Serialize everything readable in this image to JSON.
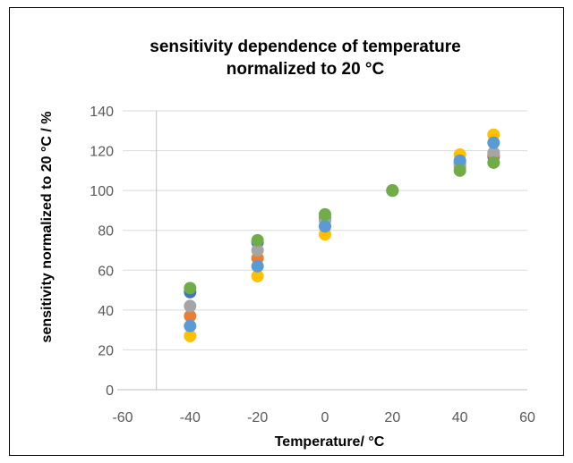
{
  "chart_data": {
    "type": "scatter",
    "title_lines": [
      "sensitivity dependence of temperature",
      "normalized to 20 °C"
    ],
    "xlabel": "Temperature/ °C",
    "ylabel": "sensitivity normalized to 20 °C / %",
    "xlim": [
      -60,
      60
    ],
    "ylim": [
      0,
      140
    ],
    "xticks": [
      "-60",
      "-40",
      "-20",
      "0",
      "20",
      "40",
      "60"
    ],
    "yticks": [
      "0",
      "20",
      "40",
      "60",
      "80",
      "100",
      "120",
      "140"
    ],
    "grid": "horizontal",
    "legend": "none",
    "series": [
      {
        "color": "#4472C4",
        "points": [
          [
            -40,
            49
          ],
          [
            -20,
            74
          ],
          [
            0,
            86
          ],
          [
            20,
            100
          ],
          [
            40,
            114
          ],
          [
            50,
            117
          ]
        ]
      },
      {
        "color": "#ED7D31",
        "points": [
          [
            -40,
            37
          ],
          [
            -20,
            66
          ],
          [
            0,
            82
          ],
          [
            20,
            100
          ],
          [
            40,
            112
          ],
          [
            50,
            118
          ]
        ]
      },
      {
        "color": "#FFC000",
        "points": [
          [
            -40,
            27
          ],
          [
            -20,
            57
          ],
          [
            0,
            78
          ],
          [
            20,
            100
          ],
          [
            40,
            118
          ],
          [
            50,
            128
          ]
        ]
      },
      {
        "color": "#A5A5A5",
        "points": [
          [
            -40,
            42
          ],
          [
            -20,
            70
          ],
          [
            0,
            85
          ],
          [
            20,
            100
          ],
          [
            40,
            113
          ],
          [
            50,
            119
          ]
        ]
      },
      {
        "color": "#5B9BD5",
        "points": [
          [
            -40,
            32
          ],
          [
            -20,
            62
          ],
          [
            0,
            82
          ],
          [
            20,
            100
          ],
          [
            40,
            115
          ],
          [
            50,
            124
          ]
        ]
      },
      {
        "color": "#70AD47",
        "points": [
          [
            -40,
            51
          ],
          [
            -20,
            75
          ],
          [
            0,
            88
          ],
          [
            20,
            100
          ],
          [
            40,
            110
          ],
          [
            50,
            114
          ]
        ]
      }
    ]
  }
}
